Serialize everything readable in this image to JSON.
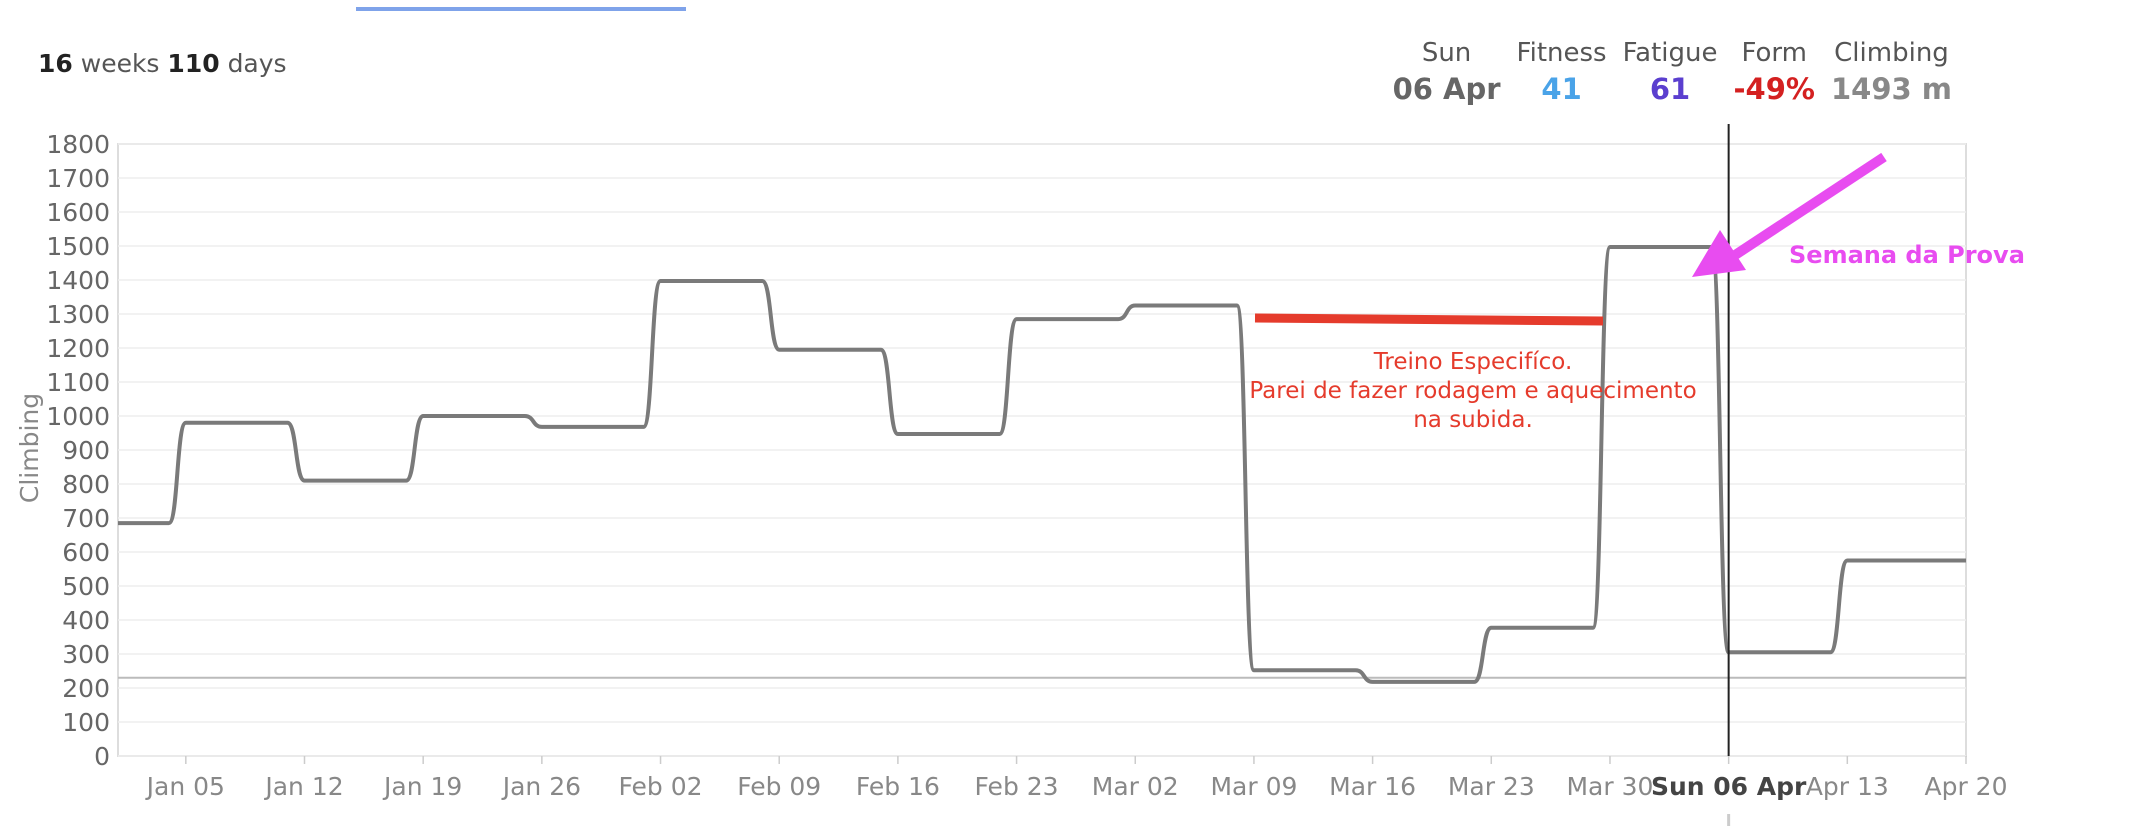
{
  "summary": {
    "weeks_num": "16",
    "weeks_word": "weeks",
    "days_num": "110",
    "days_word": "days"
  },
  "stats": [
    {
      "label": "Sun",
      "value": "06 Apr",
      "color": "#666666"
    },
    {
      "label": "Fitness",
      "value": "41",
      "color": "#4aa3e8"
    },
    {
      "label": "Fatigue",
      "value": "61",
      "color": "#5b3fcf"
    },
    {
      "label": "Form",
      "value": "-49%",
      "color": "#d42020"
    },
    {
      "label": "Climbing",
      "value": "1493 m",
      "color": "#888888"
    }
  ],
  "colors": {
    "line": "#7a7a7a",
    "grid": "#eeeeee",
    "annotation_red": "#e53b2c",
    "annotation_pink": "#e84cf0",
    "cursor": "#222222"
  },
  "chart_data": {
    "type": "line",
    "ylabel": "Climbing",
    "ylim": [
      0,
      1800
    ],
    "yticks": [
      0,
      100,
      200,
      300,
      400,
      500,
      600,
      700,
      800,
      900,
      1000,
      1100,
      1200,
      1300,
      1400,
      1500,
      1600,
      1700,
      1800
    ],
    "xlim": [
      "2025-01-01",
      "2025-04-20"
    ],
    "xticks": [
      {
        "date": "2025-01-05",
        "label": "Jan 05"
      },
      {
        "date": "2025-01-12",
        "label": "Jan 12"
      },
      {
        "date": "2025-01-19",
        "label": "Jan 19"
      },
      {
        "date": "2025-01-26",
        "label": "Jan 26"
      },
      {
        "date": "2025-02-02",
        "label": "Feb 02"
      },
      {
        "date": "2025-02-09",
        "label": "Feb 09"
      },
      {
        "date": "2025-02-16",
        "label": "Feb 16"
      },
      {
        "date": "2025-02-23",
        "label": "Feb 23"
      },
      {
        "date": "2025-03-02",
        "label": "Mar 02"
      },
      {
        "date": "2025-03-09",
        "label": "Mar 09"
      },
      {
        "date": "2025-03-16",
        "label": "Mar 16"
      },
      {
        "date": "2025-03-23",
        "label": "Mar 23"
      },
      {
        "date": "2025-03-30",
        "label": "Mar 30"
      },
      {
        "date": "2025-04-06",
        "label": "Sun 06 Apr",
        "highlight": true
      },
      {
        "date": "2025-04-13",
        "label": "Apr 13"
      },
      {
        "date": "2025-04-20",
        "label": "Apr 20"
      }
    ],
    "reference_line": 230,
    "cursor_date": "2025-04-06",
    "series": [
      {
        "points": [
          [
            "2025-01-01",
            685
          ],
          [
            "2025-01-04",
            685
          ],
          [
            "2025-01-05",
            980
          ],
          [
            "2025-01-11",
            980
          ],
          [
            "2025-01-12",
            810
          ],
          [
            "2025-01-18",
            810
          ],
          [
            "2025-01-19",
            1000
          ],
          [
            "2025-01-25",
            1000
          ],
          [
            "2025-01-26",
            968
          ],
          [
            "2025-02-01",
            968
          ],
          [
            "2025-02-02",
            1397
          ],
          [
            "2025-02-08",
            1397
          ],
          [
            "2025-02-09",
            1195
          ],
          [
            "2025-02-15",
            1195
          ],
          [
            "2025-02-16",
            947
          ],
          [
            "2025-02-22",
            947
          ],
          [
            "2025-02-23",
            1285
          ],
          [
            "2025-03-01",
            1285
          ],
          [
            "2025-03-02",
            1325
          ],
          [
            "2025-03-08",
            1325
          ],
          [
            "2025-03-09",
            252
          ],
          [
            "2025-03-15",
            252
          ],
          [
            "2025-03-16",
            218
          ],
          [
            "2025-03-22",
            218
          ],
          [
            "2025-03-23",
            377
          ],
          [
            "2025-03-29",
            377
          ],
          [
            "2025-03-30",
            1497
          ],
          [
            "2025-04-05",
            1497
          ],
          [
            "2025-04-06",
            305
          ],
          [
            "2025-04-12",
            305
          ],
          [
            "2025-04-13",
            575
          ],
          [
            "2025-04-20",
            575
          ]
        ]
      }
    ],
    "annotations": [
      {
        "text_lines": [
          "Treino Especifíco.",
          "Parei de fazer rodagem e aquecimento",
          "na subida."
        ],
        "color": "#e53b2c"
      },
      {
        "text": "Semana da Prova",
        "color": "#e84cf0"
      }
    ]
  }
}
